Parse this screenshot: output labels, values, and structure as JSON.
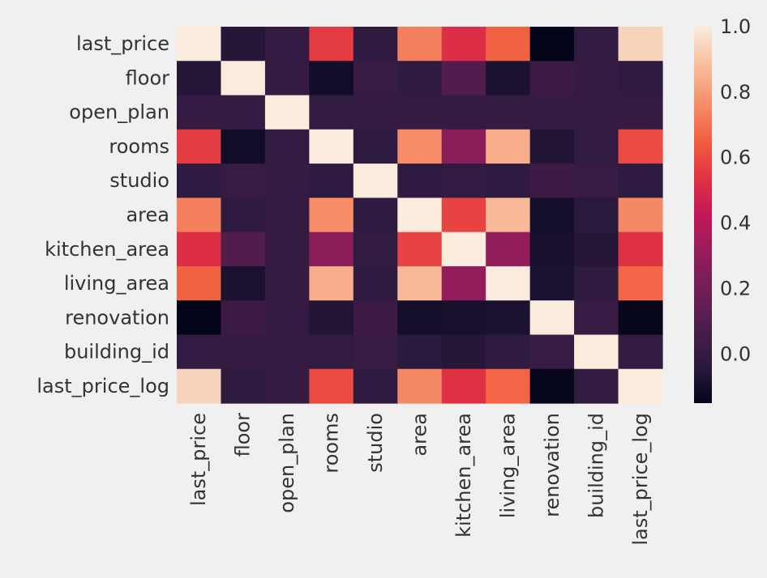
{
  "chart_data": {
    "type": "heatmap",
    "title": "",
    "xlabel": "",
    "ylabel": "",
    "row_labels": [
      "last_price",
      "floor",
      "open_plan",
      "rooms",
      "studio",
      "area",
      "kitchen_area",
      "living_area",
      "renovation",
      "building_id",
      "last_price_log"
    ],
    "col_labels": [
      "last_price",
      "floor",
      "open_plan",
      "rooms",
      "studio",
      "area",
      "kitchen_area",
      "living_area",
      "renovation",
      "building_id",
      "last_price_log"
    ],
    "values": [
      [
        1.0,
        -0.05,
        0.0,
        0.56,
        -0.02,
        0.73,
        0.52,
        0.66,
        -0.15,
        -0.01,
        0.94
      ],
      [
        -0.05,
        1.0,
        0.0,
        -0.11,
        0.01,
        -0.02,
        0.1,
        -0.08,
        0.02,
        0.0,
        -0.02
      ],
      [
        0.0,
        0.0,
        1.0,
        -0.01,
        0.0,
        0.0,
        0.0,
        0.0,
        0.0,
        0.0,
        0.0
      ],
      [
        0.56,
        -0.11,
        -0.01,
        1.0,
        -0.03,
        0.76,
        0.27,
        0.84,
        -0.06,
        -0.01,
        0.6
      ],
      [
        -0.02,
        0.01,
        0.0,
        -0.03,
        1.0,
        -0.02,
        -0.01,
        -0.02,
        0.02,
        0.01,
        -0.02
      ],
      [
        0.73,
        -0.02,
        0.0,
        0.76,
        -0.02,
        1.0,
        0.58,
        0.87,
        -0.1,
        -0.04,
        0.75
      ],
      [
        0.52,
        0.1,
        0.0,
        0.27,
        -0.01,
        0.58,
        1.0,
        0.3,
        -0.09,
        -0.05,
        0.53
      ],
      [
        0.66,
        -0.08,
        0.0,
        0.84,
        -0.02,
        0.87,
        0.3,
        1.0,
        -0.08,
        -0.02,
        0.67
      ],
      [
        -0.15,
        0.02,
        0.0,
        -0.06,
        0.02,
        -0.1,
        -0.09,
        -0.08,
        1.0,
        0.01,
        -0.14
      ],
      [
        -0.01,
        0.0,
        0.0,
        -0.01,
        0.01,
        -0.04,
        -0.05,
        -0.02,
        0.01,
        1.0,
        -0.01
      ],
      [
        0.94,
        -0.02,
        0.0,
        0.6,
        -0.02,
        0.75,
        0.53,
        0.67,
        -0.14,
        -0.01,
        1.0
      ]
    ],
    "colorbar": {
      "min": -0.15,
      "max": 1.0,
      "ticks": [
        0.0,
        0.2,
        0.4,
        0.6,
        0.8,
        1.0
      ],
      "tick_labels": [
        "0.0",
        "0.2",
        "0.4",
        "0.6",
        "0.8",
        "1.0"
      ]
    },
    "colormap": [
      "#03051a",
      "#2b1a3e",
      "#4c1d4b",
      "#701f57",
      "#961c5b",
      "#c2185a",
      "#e13342",
      "#f16041",
      "#f6906c",
      "#f7bf9d",
      "#faebdd"
    ]
  }
}
